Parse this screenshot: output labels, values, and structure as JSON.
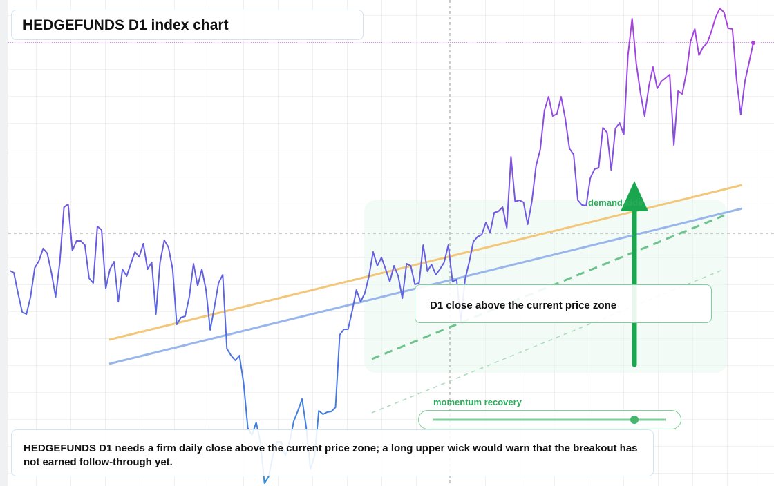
{
  "chart_data": {
    "type": "line",
    "title": "HEDGEFUNDS D1 index chart",
    "subtitle": "HEDGEFUNDS D1 needs a firm daily close above the current price zone; a long upper wick would warn that the breakout has not earned follow-through yet.",
    "annotations": [
      "demand side",
      "D1 close above the current price zone",
      "momentum recovery"
    ],
    "colors": [
      "#b03ee0",
      "#6a5ae0",
      "#2e8fe0"
    ],
    "ylim": [
      0,
      70.4
    ],
    "values": [
      31.2,
      30.9,
      27.9,
      25.2,
      24.9,
      27.4,
      31.6,
      32.6,
      34.4,
      33.7,
      30.9,
      27.4,
      32.4,
      40.4,
      40.8,
      34.1,
      35.5,
      35.5,
      34.9,
      30.1,
      29.4,
      37.6,
      37.1,
      28.6,
      31.4,
      32.5,
      26.7,
      31.4,
      30.4,
      32.2,
      33.9,
      33.2,
      35.1,
      31.4,
      32.4,
      24.9,
      32.4,
      35.6,
      34.6,
      31.4,
      23.4,
      24.4,
      24.6,
      27.4,
      32.2,
      29.0,
      31.4,
      28.4,
      22.6,
      25.9,
      29.4,
      30.6,
      19.9,
      18.9,
      18.2,
      18.9,
      14.9,
      8.4,
      7.4,
      9.2,
      6.4,
      0.4,
      1.4,
      4.4,
      6.4,
      6.4,
      4.4,
      6.4,
      9.4,
      10.9,
      12.6,
      8.4,
      2.4,
      4.4,
      10.9,
      10.4,
      10.7,
      10.8,
      11.4,
      21.9,
      22.7,
      22.7,
      25.4,
      28.4,
      26.7,
      27.9,
      30.4,
      33.9,
      31.9,
      33.1,
      31.4,
      29.6,
      31.9,
      30.4,
      27.2,
      32.2,
      31.9,
      29.2,
      29.4,
      34.9,
      31.1,
      32.1,
      30.6,
      31.4,
      32.4,
      34.9,
      29.6,
      29.9,
      23.8,
      29.9,
      32.4,
      35.4,
      36.1,
      36.4,
      38.2,
      36.7,
      39.6,
      39.8,
      40.4,
      37.4,
      47.7,
      41.2,
      41.4,
      41.1,
      37.9,
      41.2,
      46.4,
      48.7,
      54.4,
      56.4,
      53.6,
      53.9,
      56.4,
      53.2,
      48.9,
      48.0,
      41.4,
      40.7,
      40.6,
      44.6,
      45.9,
      46.1,
      51.9,
      51.2,
      45.7,
      51.8,
      52.6,
      50.9,
      62.4,
      67.7,
      61.2,
      56.9,
      53.6,
      57.9,
      60.7,
      57.6,
      58.6,
      59.1,
      59.6,
      49.4,
      57.2,
      56.8,
      59.9,
      64.4,
      66.2,
      62.4,
      63.6,
      64.2,
      65.9,
      67.9,
      69.2,
      68.6,
      66.3,
      66.2,
      58.9,
      53.8,
      58.6,
      61.4,
      64.2
    ]
  }
}
